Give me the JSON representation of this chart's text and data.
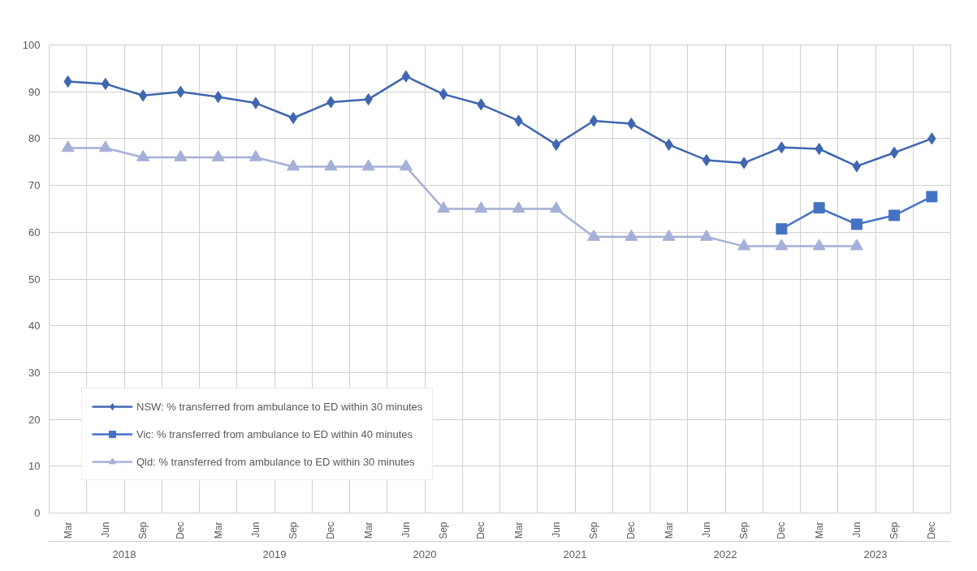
{
  "chart_data": {
    "type": "line",
    "categories": [
      "Mar",
      "Jun",
      "Sep",
      "Dec",
      "Mar",
      "Jun",
      "Sep",
      "Dec",
      "Mar",
      "Jun",
      "Sep",
      "Dec",
      "Mar",
      "Jun",
      "Sep",
      "Dec",
      "Mar",
      "Jun",
      "Sep",
      "Dec",
      "Mar",
      "Jun",
      "Sep",
      "Dec"
    ],
    "annotations": [
      "2018",
      "2019",
      "2020",
      "2021",
      "2022",
      "2023"
    ],
    "series": [
      {
        "name": "NSW: % transferred from ambulance to ED within 30 minutes",
        "color": "#3f66b0",
        "marker": "diamond",
        "values": [
          92.2,
          91.7,
          89.2,
          90,
          88.9,
          87.6,
          84.4,
          87.8,
          88.4,
          93.3,
          89.5,
          87.3,
          83.8,
          78.7,
          83.8,
          83.2,
          78.7,
          75.4,
          74.8,
          78.1,
          77.8,
          74.1,
          77,
          80
        ]
      },
      {
        "name": "Vic: % transferred from ambulance to ED within 40 minutes",
        "color": "#4472c4",
        "marker": "square",
        "values": [
          null,
          null,
          null,
          null,
          null,
          null,
          null,
          null,
          null,
          null,
          null,
          null,
          null,
          null,
          null,
          null,
          null,
          null,
          null,
          60.7,
          65.2,
          61.7,
          63.6,
          67.6
        ]
      },
      {
        "name": "Qld: % transferred from ambulance to ED within 30 minutes",
        "color": "#a5b0d8",
        "marker": "triangle",
        "values": [
          78,
          78,
          76,
          76,
          76,
          76,
          74,
          74,
          74,
          74,
          65,
          65,
          65,
          65,
          59,
          59,
          59,
          59,
          57,
          57,
          57,
          57,
          null,
          null
        ]
      }
    ],
    "ylim": [
      0,
      100
    ],
    "yticks": [
      0,
      10,
      20,
      30,
      40,
      50,
      60,
      70,
      80,
      90,
      100
    ],
    "grid": true,
    "legend": "bottom left"
  }
}
